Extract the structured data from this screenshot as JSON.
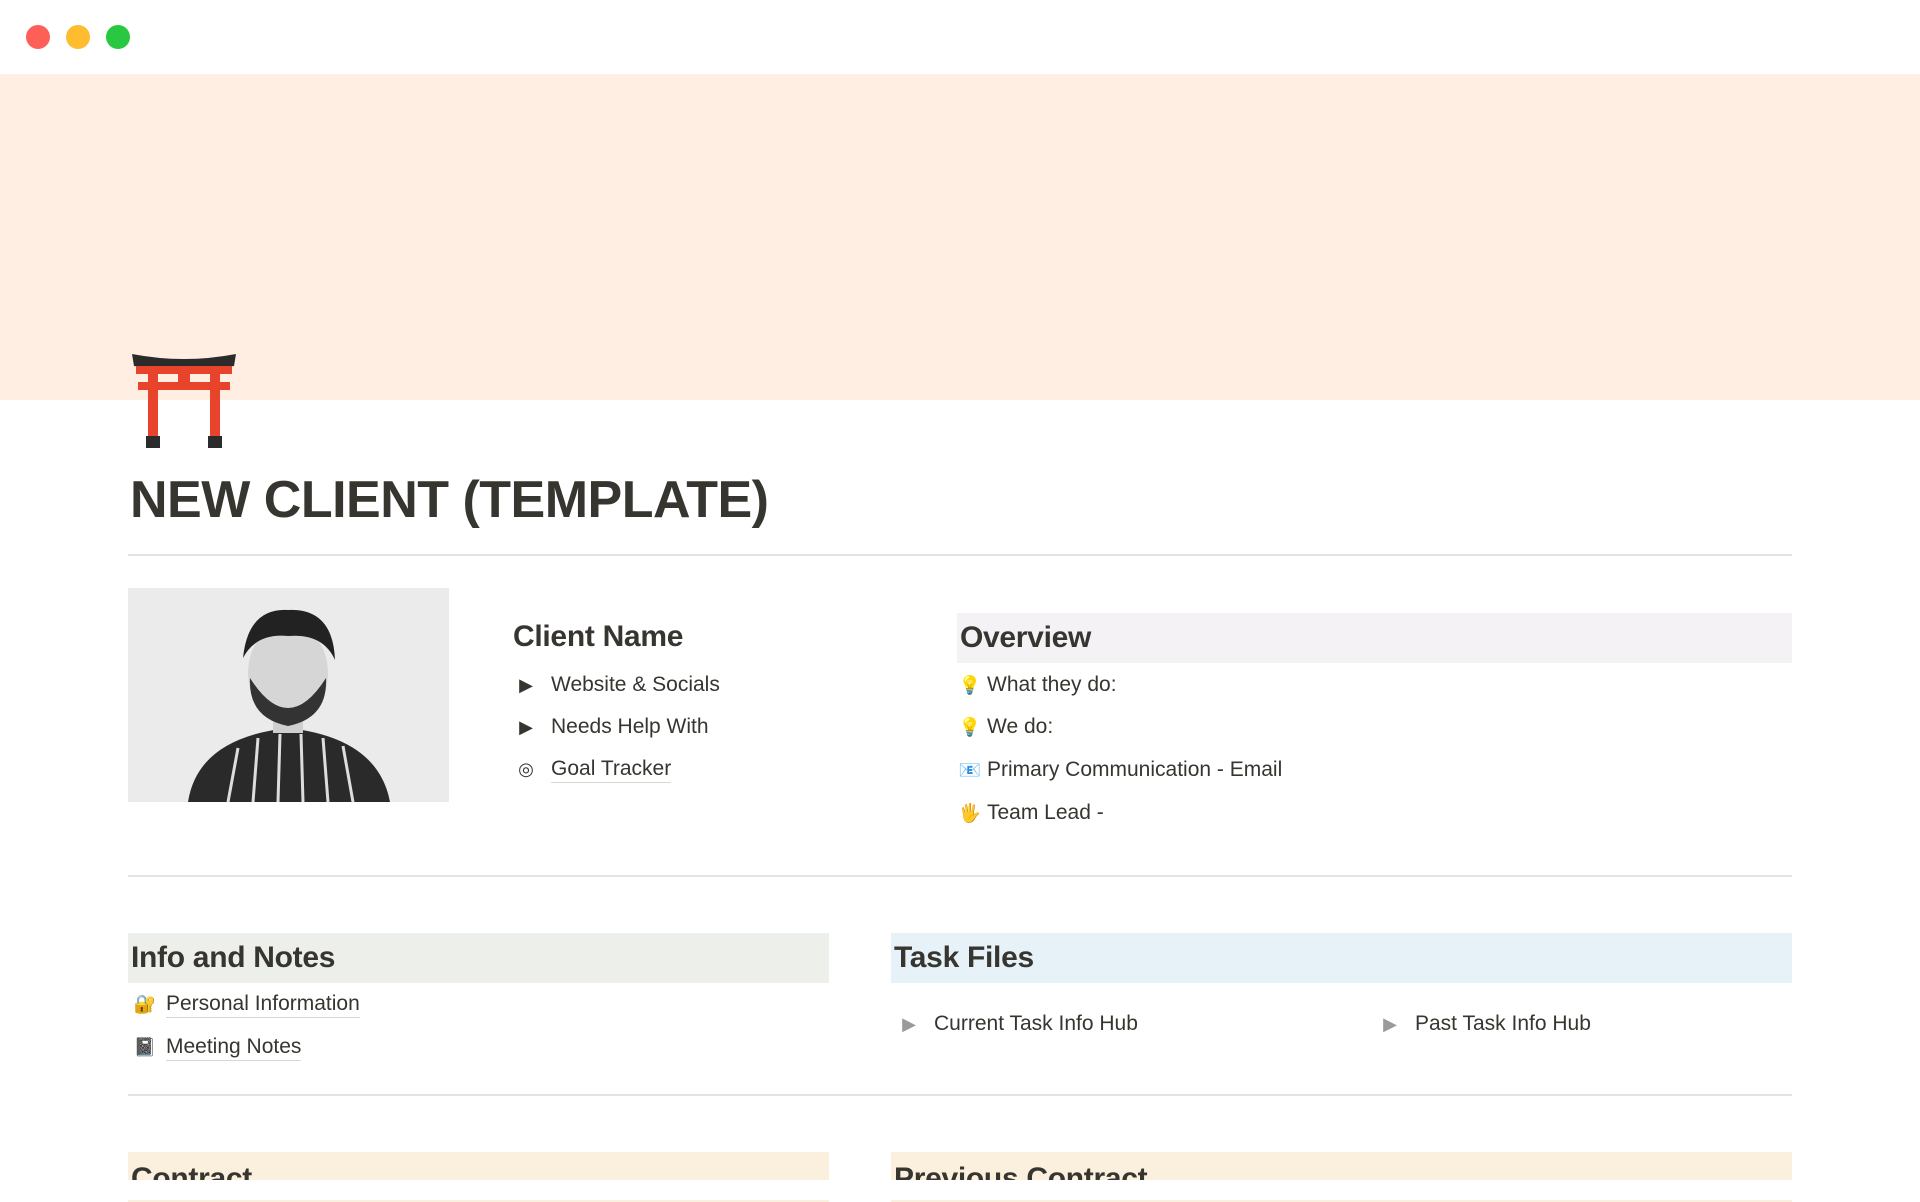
{
  "window": {
    "controls": {
      "close_color": "#fe5f57",
      "minimize_color": "#febc2e",
      "zoom_color": "#28c840"
    }
  },
  "page": {
    "icon": "torii-gate-icon",
    "title": "NEW CLIENT (TEMPLATE)",
    "cover_color": "#ffeee1"
  },
  "client": {
    "heading": "Client Name",
    "items": [
      {
        "icon": "toggle-triangle",
        "label": "Website & Socials"
      },
      {
        "icon": "toggle-triangle",
        "label": "Needs Help With"
      },
      {
        "icon": "target-icon",
        "label": "Goal Tracker"
      }
    ]
  },
  "overview": {
    "heading": "Overview",
    "bg": "#f4f2f5",
    "items": [
      {
        "icon": "💡",
        "label": "What they do:"
      },
      {
        "icon": "💡",
        "label": "We do:"
      },
      {
        "icon": "📧",
        "label": "Primary Communication - Email"
      },
      {
        "icon": "🖐",
        "label": "Team Lead -"
      }
    ]
  },
  "info_notes": {
    "heading": "Info and Notes",
    "bg": "#edf0ea",
    "items": [
      {
        "icon": "🔐",
        "label": "Personal Information"
      },
      {
        "icon": "📓",
        "label": "Meeting Notes"
      }
    ]
  },
  "task_files": {
    "heading": "Task Files",
    "bg": "#e6f2f8",
    "items": [
      {
        "label": "Current Task Info Hub"
      },
      {
        "label": "Past Task Info Hub"
      }
    ]
  },
  "contract": {
    "heading": "Contract",
    "bg": "#fbf0dd"
  },
  "previous_contract": {
    "heading": "Previous Contract",
    "bg": "#fbf0dd"
  }
}
